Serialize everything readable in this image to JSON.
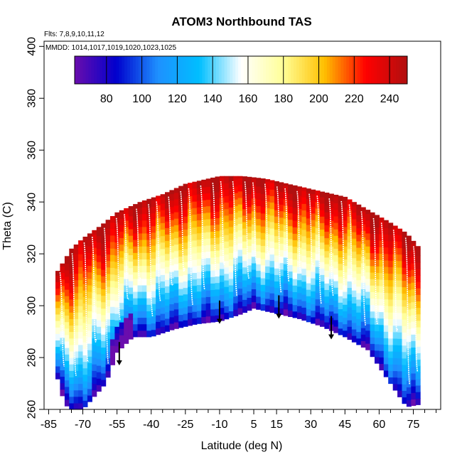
{
  "chart_data": {
    "type": "heatmap",
    "title": "ATOM3 Northbound TAS",
    "xlabel": "Latitude (deg N)",
    "ylabel": "Theta (C)",
    "flights_note": "Flts: 7,8,9,10,11,12",
    "dates_note": "MMDD: 1014,1017,1019,1020,1023,1025",
    "xlim": [
      -87,
      87
    ],
    "ylim": [
      260,
      402
    ],
    "x_ticks": [
      -85,
      -70,
      -55,
      -40,
      -25,
      -10,
      5,
      15,
      30,
      45,
      60,
      75
    ],
    "x_tick_labels": [
      "-85",
      "-70",
      "-55",
      "-40",
      "-25",
      "-10",
      "5",
      "15",
      "30",
      "45",
      "60",
      "75"
    ],
    "y_ticks": [
      260,
      280,
      300,
      320,
      340,
      360,
      380,
      400
    ],
    "y_tick_labels": [
      "260",
      "280",
      "300",
      "320",
      "340",
      "360",
      "380",
      "400"
    ],
    "colorbar": {
      "range": [
        62,
        250
      ],
      "ticks": [
        80,
        100,
        120,
        140,
        160,
        180,
        200,
        220,
        240
      ],
      "tick_labels": [
        "80",
        "100",
        "120",
        "140",
        "160",
        "180",
        "200",
        "220",
        "240"
      ],
      "colors": [
        "#6a0dad",
        "#0000cd",
        "#1e90ff",
        "#00bfff",
        "#ffffff",
        "#ffff99",
        "#ffc000",
        "#ff0000",
        "#b01010"
      ]
    },
    "series": [
      {
        "name": "upper boundary (theta)",
        "x": [
          -82,
          -75,
          -70,
          -62,
          -55,
          -45,
          -35,
          -25,
          -10,
          0,
          10,
          20,
          30,
          45,
          55,
          65,
          72,
          78
        ],
        "values": [
          312,
          322,
          326,
          331,
          336,
          340,
          343,
          347,
          350,
          350,
          349,
          347,
          345,
          342,
          337,
          332,
          328,
          322
        ]
      },
      {
        "name": "lower boundary (theta)",
        "x": [
          -82,
          -78,
          -75,
          -70,
          -60,
          -55,
          -48,
          -40,
          -30,
          -20,
          -10,
          0,
          5,
          15,
          25,
          35,
          45,
          55,
          65,
          72,
          78
        ],
        "values": [
          275,
          262,
          260,
          260,
          270,
          282,
          288,
          288,
          291,
          293,
          294,
          297,
          299,
          297,
          295,
          292,
          288,
          283,
          270,
          261,
          262
        ]
      },
      {
        "name": "tropopause markers (arrows)",
        "x": [
          -54,
          -10,
          16,
          39
        ],
        "values": [
          286,
          302,
          304,
          296
        ]
      }
    ]
  }
}
